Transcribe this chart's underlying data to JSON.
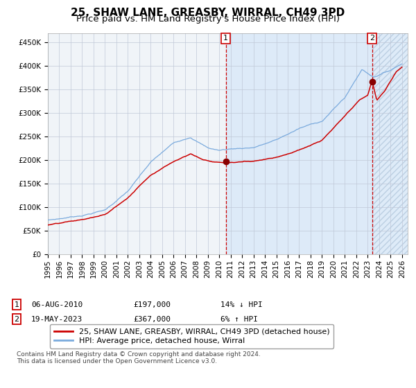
{
  "title": "25, SHAW LANE, GREASBY, WIRRAL, CH49 3PD",
  "subtitle": "Price paid vs. HM Land Registry's House Price Index (HPI)",
  "ylim": [
    0,
    470000
  ],
  "yticks": [
    0,
    50000,
    100000,
    150000,
    200000,
    250000,
    300000,
    350000,
    400000,
    450000
  ],
  "ytick_labels": [
    "£0",
    "£50K",
    "£100K",
    "£150K",
    "£200K",
    "£250K",
    "£300K",
    "£350K",
    "£400K",
    "£450K"
  ],
  "background_color": "#ffffff",
  "plot_bg_color": "#f0f4f8",
  "grid_color": "#c0c8d8",
  "red_line_color": "#cc0000",
  "blue_line_color": "#7aaadd",
  "marker_color": "#880000",
  "vline1_x": 2010.58,
  "vline2_x": 2023.38,
  "marker1_y": 197000,
  "marker2_y": 367000,
  "shade_start_x": 2010.58,
  "shade_end_x": 2023.38,
  "hatch_start_x": 2023.38,
  "xmin": 1995.0,
  "xmax": 2026.5,
  "legend_entry1": "25, SHAW LANE, GREASBY, WIRRAL, CH49 3PD (detached house)",
  "legend_entry2": "HPI: Average price, detached house, Wirral",
  "annot1_date": "06-AUG-2010",
  "annot1_price": "£197,000",
  "annot1_hpi": "14% ↓ HPI",
  "annot2_date": "19-MAY-2023",
  "annot2_price": "£367,000",
  "annot2_hpi": "6% ↑ HPI",
  "footer": "Contains HM Land Registry data © Crown copyright and database right 2024.\nThis data is licensed under the Open Government Licence v3.0.",
  "title_fontsize": 11,
  "subtitle_fontsize": 9.5,
  "tick_fontsize": 7.5,
  "legend_fontsize": 8,
  "annot_fontsize": 8,
  "footer_fontsize": 6.5
}
